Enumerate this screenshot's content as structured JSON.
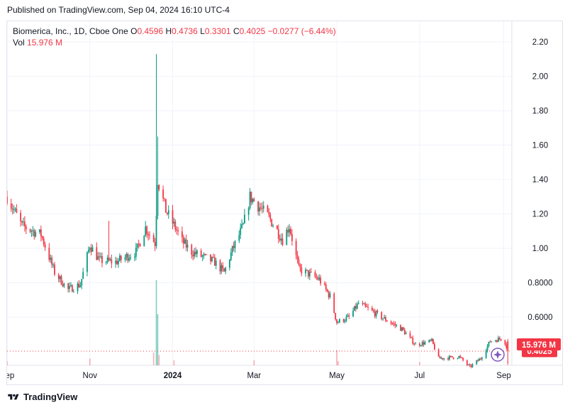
{
  "header": {
    "published": "Published on TradingView.com, Sep 04, 2024 16:10 UTC-4"
  },
  "legend": {
    "symbol": "Biomerica, Inc., 1D, Cboe One",
    "o_label": "O",
    "o_value": "0.4596",
    "h_label": "H",
    "h_value": "0.4736",
    "l_label": "L",
    "l_value": "0.3301",
    "c_label": "C",
    "c_value": "0.4025",
    "change": "−0.0277 (−6.44%)",
    "vol_label": "Vol",
    "vol_value": "15.976 M"
  },
  "badges": {
    "price": "0.4025",
    "volume": "15.976 M"
  },
  "footer": {
    "brand": "TradingView"
  },
  "colors": {
    "up": "#089981",
    "down": "#f23645",
    "grid": "#f0f3fa",
    "text": "#131722",
    "accent": "#7e57c2"
  },
  "icons": {
    "logo": "tradingview-logo-icon",
    "star": "star-icon"
  },
  "chart_data": {
    "type": "candlestick",
    "y_ticks": [
      "2.20",
      "2.00",
      "1.80",
      "1.60",
      "1.40",
      "1.20",
      "1.00",
      "0.8000",
      "0.6000"
    ],
    "y_tick_values": [
      2.2,
      2.0,
      1.8,
      1.6,
      1.4,
      1.2,
      1.0,
      0.8,
      0.6
    ],
    "ylim": [
      0.32,
      2.32
    ],
    "x_ticks": [
      "Sep",
      "Nov",
      "2024",
      "Mar",
      "May",
      "Jul",
      "Sep"
    ],
    "x_tick_dates": [
      "2023-09-01",
      "2023-11-01",
      "2024-01-01",
      "2024-03-01",
      "2024-05-01",
      "2024-07-01",
      "2024-09-01"
    ],
    "x_range": [
      "2023-09-01",
      "2024-09-07"
    ],
    "last_close": 0.4025,
    "price_path": [
      [
        "2023-09-01",
        1.3
      ],
      [
        "2023-09-12",
        1.13
      ],
      [
        "2023-09-26",
        1.08
      ],
      [
        "2023-10-06",
        0.86
      ],
      [
        "2023-10-16",
        0.76
      ],
      [
        "2023-10-25",
        0.79
      ],
      [
        "2023-11-01",
        1.02
      ],
      [
        "2023-11-08",
        0.93
      ],
      [
        "2023-11-20",
        0.92
      ],
      [
        "2023-12-05",
        0.98
      ],
      [
        "2023-12-12",
        1.12
      ],
      [
        "2023-12-19",
        1.03
      ],
      [
        "2023-12-21",
        1.4
      ],
      [
        "2023-12-27",
        1.22
      ],
      [
        "2024-01-03",
        1.12
      ],
      [
        "2024-01-08",
        1.04
      ],
      [
        "2024-01-15",
        0.98
      ],
      [
        "2024-02-01",
        0.92
      ],
      [
        "2024-02-08",
        0.86
      ],
      [
        "2024-02-14",
        0.99
      ],
      [
        "2024-02-22",
        1.13
      ],
      [
        "2024-02-27",
        1.3
      ],
      [
        "2024-03-12",
        1.18
      ],
      [
        "2024-03-22",
        1.05
      ],
      [
        "2024-03-27",
        1.13
      ],
      [
        "2024-04-03",
        0.88
      ],
      [
        "2024-04-18",
        0.82
      ],
      [
        "2024-04-26",
        0.72
      ],
      [
        "2024-05-01",
        0.57
      ],
      [
        "2024-05-10",
        0.6
      ],
      [
        "2024-05-17",
        0.68
      ],
      [
        "2024-06-05",
        0.59
      ],
      [
        "2024-06-18",
        0.53
      ],
      [
        "2024-06-28",
        0.44
      ],
      [
        "2024-07-10",
        0.46
      ],
      [
        "2024-07-15",
        0.36
      ],
      [
        "2024-07-30",
        0.37
      ],
      [
        "2024-08-07",
        0.31
      ],
      [
        "2024-08-15",
        0.36
      ],
      [
        "2024-08-22",
        0.46
      ],
      [
        "2024-09-01",
        0.48
      ],
      [
        "2024-09-04",
        0.4025
      ]
    ],
    "volume_path": [
      [
        "2023-09-01",
        0.05
      ],
      [
        "2023-11-01",
        0.08
      ],
      [
        "2023-12-18",
        0.15
      ],
      [
        "2023-12-20",
        1.0
      ],
      [
        "2023-12-21",
        0.6
      ],
      [
        "2023-12-22",
        0.12
      ],
      [
        "2024-01-02",
        0.06
      ],
      [
        "2024-03-01",
        0.06
      ],
      [
        "2024-05-01",
        0.18
      ],
      [
        "2024-05-02",
        0.05
      ],
      [
        "2024-07-01",
        0.04
      ],
      [
        "2024-09-04",
        0.05
      ]
    ]
  }
}
